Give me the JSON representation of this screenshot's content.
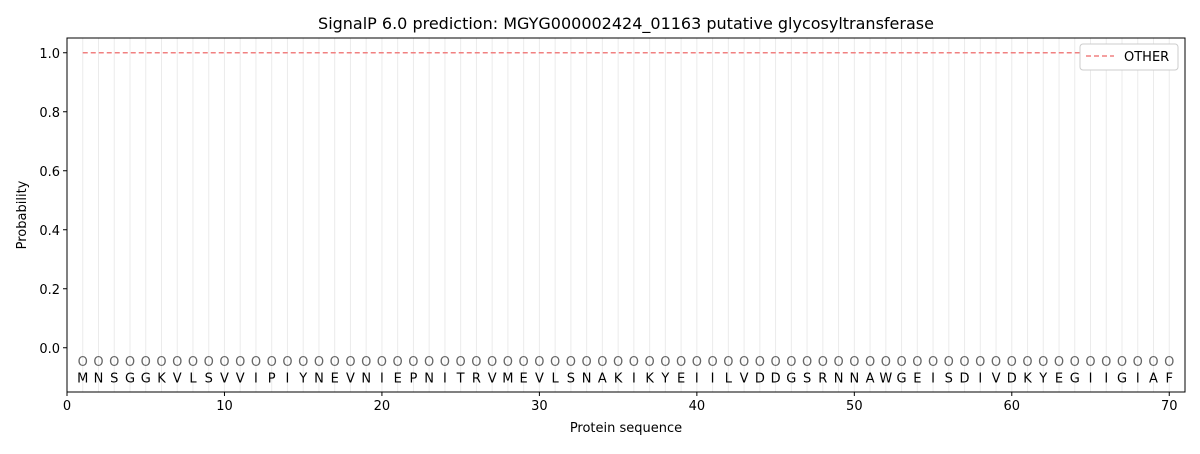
{
  "chart_data": {
    "type": "line",
    "title": "SignalP 6.0 prediction: MGYG000002424_01163 putative glycosyltransferase",
    "xlabel": "Protein sequence",
    "ylabel": "Probability",
    "xlim": [
      0,
      71
    ],
    "ylim": [
      -0.15,
      1.05
    ],
    "xticks": [
      0,
      10,
      20,
      30,
      40,
      50,
      60,
      70
    ],
    "yticks": [
      0.0,
      0.2,
      0.4,
      0.6,
      0.8,
      1.0
    ],
    "ytick_labels": [
      "0.0",
      "0.2",
      "0.4",
      "0.6",
      "0.8",
      "1.0"
    ],
    "grid": "vertical per residue",
    "legend_placement": "top-right",
    "sequence": [
      "M",
      "N",
      "S",
      "G",
      "G",
      "K",
      "V",
      "L",
      "S",
      "V",
      "V",
      "I",
      "P",
      "I",
      "Y",
      "N",
      "E",
      "V",
      "N",
      "I",
      "E",
      "P",
      "N",
      "I",
      "T",
      "R",
      "V",
      "M",
      "E",
      "V",
      "L",
      "S",
      "N",
      "A",
      "K",
      "I",
      "K",
      "Y",
      "E",
      "I",
      "I",
      "L",
      "V",
      "D",
      "D",
      "G",
      "S",
      "R",
      "N",
      "N",
      "A",
      "W",
      "G",
      "E",
      "I",
      "S",
      "D",
      "I",
      "V",
      "D",
      "K",
      "Y",
      "E",
      "G",
      "I",
      "I",
      "G",
      "I",
      "A",
      "F"
    ],
    "region_label": "O",
    "series": [
      {
        "name": "OTHER",
        "color": "#f08080",
        "style": "dashed",
        "x_start": 1,
        "x_end": 70,
        "value": 1.0
      }
    ]
  }
}
